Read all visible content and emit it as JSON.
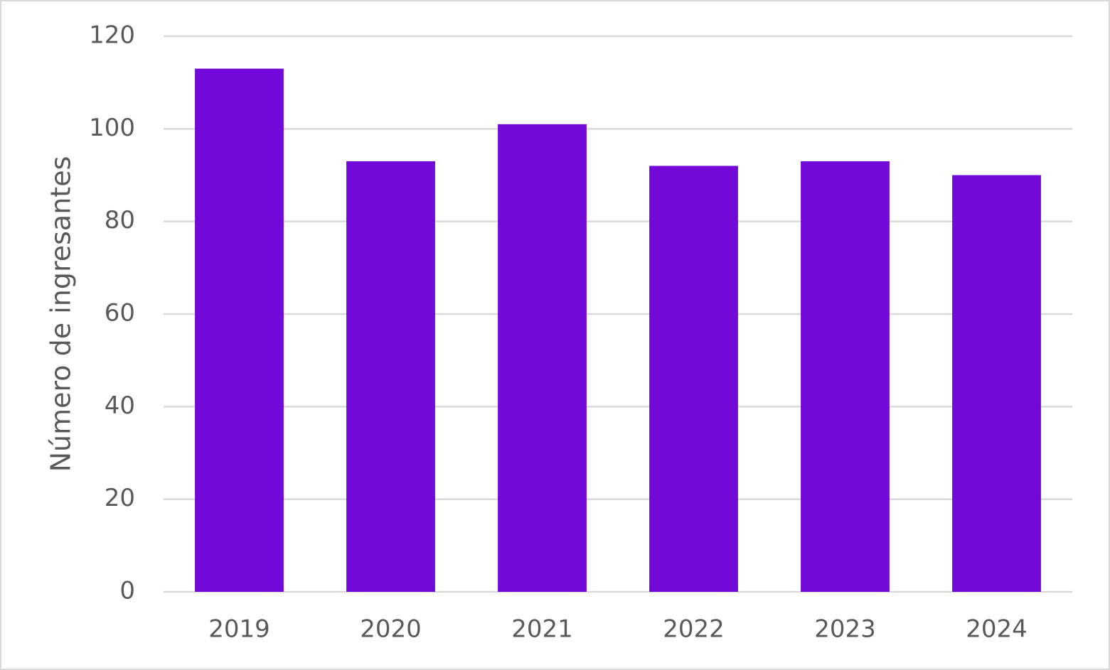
{
  "chart_data": {
    "type": "bar",
    "y_label": "Número de ingresantes",
    "categories": [
      "2019",
      "2020",
      "2021",
      "2022",
      "2023",
      "2024"
    ],
    "values": [
      113,
      93,
      101,
      92,
      93,
      90
    ],
    "color": "#7209d9",
    "ylim": [
      0,
      120
    ],
    "yticks": [
      0,
      20,
      40,
      60,
      80,
      100,
      120
    ],
    "grid": true
  }
}
